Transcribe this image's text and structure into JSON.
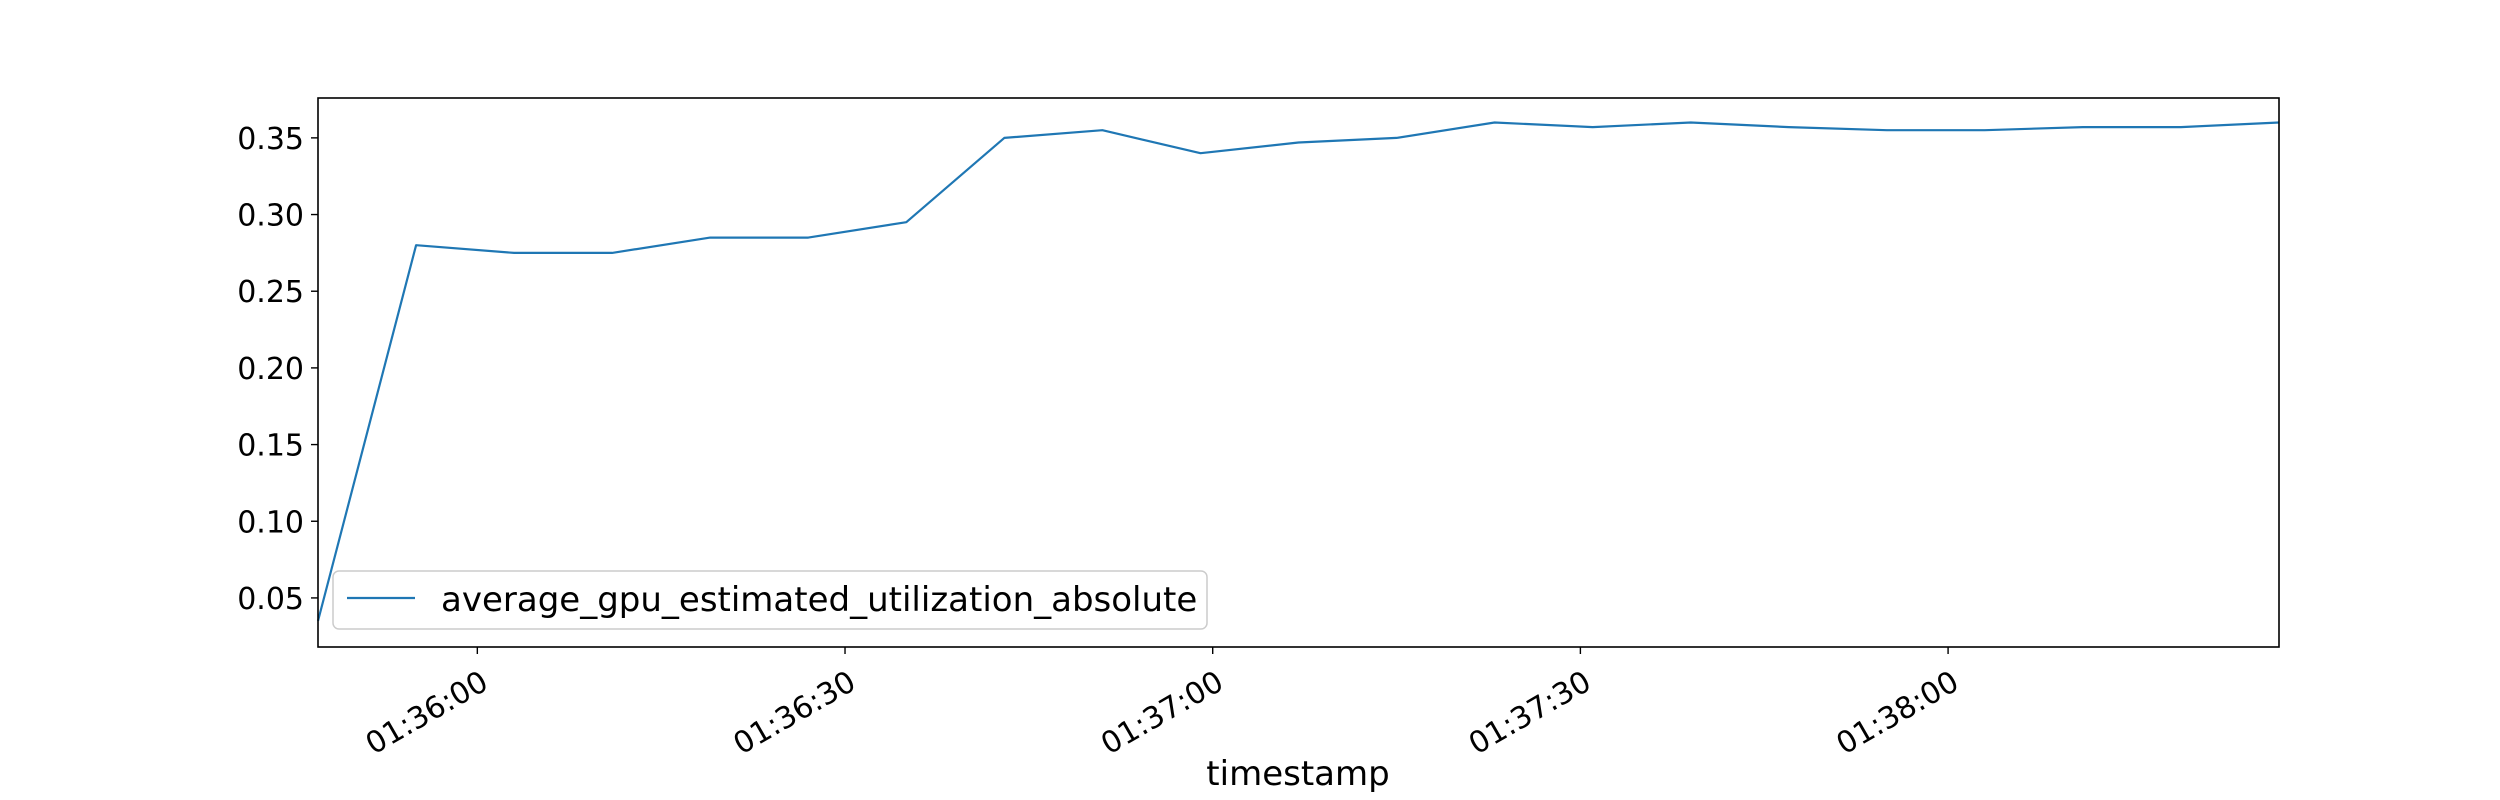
{
  "chart_data": {
    "type": "line",
    "title": "",
    "xlabel": "timestamp",
    "ylabel": "",
    "x_type": "time",
    "xlim": [
      "01:35:47",
      "01:38:27"
    ],
    "ylim": [
      0.018,
      0.376
    ],
    "x_ticks": [
      "01:36:00",
      "01:36:30",
      "01:37:00",
      "01:37:30",
      "01:38:00"
    ],
    "y_ticks": [
      "0.05",
      "0.10",
      "0.15",
      "0.20",
      "0.25",
      "0.30",
      "0.35"
    ],
    "grid": false,
    "legend_position": "lower-left",
    "series": [
      {
        "name": "average_gpu_estimated_utilization_absolute",
        "color": "#1f77b4",
        "points": [
          {
            "x": "01:35:47",
            "y": 0.035
          },
          {
            "x": "01:35:55",
            "y": 0.28
          },
          {
            "x": "01:36:03",
            "y": 0.275
          },
          {
            "x": "01:36:11",
            "y": 0.275
          },
          {
            "x": "01:36:19",
            "y": 0.285
          },
          {
            "x": "01:36:27",
            "y": 0.285
          },
          {
            "x": "01:36:35",
            "y": 0.295
          },
          {
            "x": "01:36:43",
            "y": 0.35
          },
          {
            "x": "01:36:51",
            "y": 0.355
          },
          {
            "x": "01:36:59",
            "y": 0.34
          },
          {
            "x": "01:37:07",
            "y": 0.347
          },
          {
            "x": "01:37:15",
            "y": 0.35
          },
          {
            "x": "01:37:23",
            "y": 0.36
          },
          {
            "x": "01:37:31",
            "y": 0.357
          },
          {
            "x": "01:37:39",
            "y": 0.36
          },
          {
            "x": "01:37:47",
            "y": 0.357
          },
          {
            "x": "01:37:55",
            "y": 0.355
          },
          {
            "x": "01:38:03",
            "y": 0.355
          },
          {
            "x": "01:38:11",
            "y": 0.357
          },
          {
            "x": "01:38:19",
            "y": 0.357
          },
          {
            "x": "01:38:27",
            "y": 0.36
          }
        ]
      }
    ]
  }
}
